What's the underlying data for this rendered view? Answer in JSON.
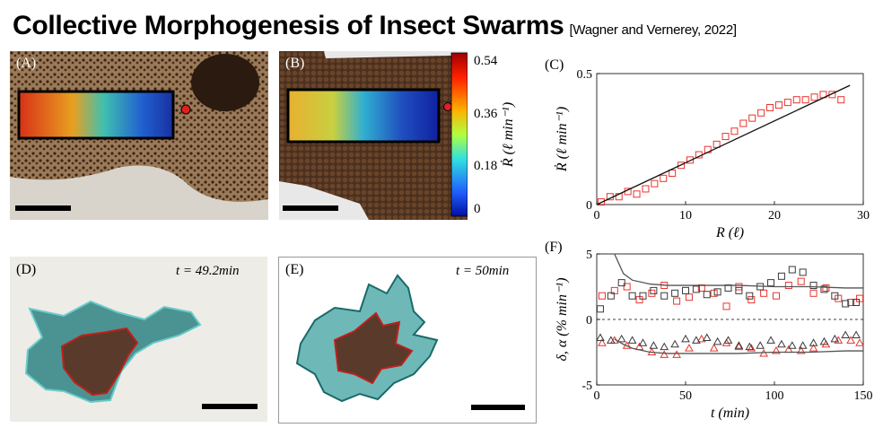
{
  "title": "Collective Morphogenesis of Insect Swarms",
  "citation": "[Wagner and Vernerey, 2022]",
  "panels": {
    "a": {
      "label": "(A)"
    },
    "b": {
      "label": "(B)",
      "colorbar": {
        "ticks": [
          "0.54",
          "0.36",
          "0.18",
          "0"
        ],
        "label": "Ṙ (ℓ min⁻¹)"
      }
    },
    "c": {
      "label": "(C)"
    },
    "d": {
      "label": "(D)",
      "time": "t = 49.2min"
    },
    "e": {
      "label": "(E)",
      "time": "t = 50min"
    },
    "f": {
      "label": "(F)"
    }
  },
  "colors": {
    "red_series": "#e8342e",
    "dark_series": "#3a3a3a",
    "teal_region": "#2a9a9a",
    "core_outline": "#c0201c"
  },
  "chart_data": [
    {
      "type": "scatter",
      "panel": "C",
      "xlabel": "R (ℓ)",
      "ylabel": "Ṙ (ℓ min⁻¹)",
      "xlim": [
        0,
        30
      ],
      "ylim": [
        0,
        0.5
      ],
      "xticks": [
        "0",
        "10",
        "20",
        "30"
      ],
      "yticks": [
        "0",
        "0.5"
      ],
      "series": [
        {
          "marker": "square",
          "color": "#e8342e",
          "x": [
            0.5,
            1.5,
            2.5,
            3.5,
            4.5,
            5.5,
            6.5,
            7.5,
            8.5,
            9.5,
            10.5,
            11.5,
            12.5,
            13.5,
            14.5,
            15.5,
            16.5,
            17.5,
            18.5,
            19.5,
            20.5,
            21.5,
            22.5,
            23.5,
            24.5,
            25.5,
            26.5,
            27.5
          ],
          "y": [
            0.01,
            0.03,
            0.03,
            0.05,
            0.04,
            0.06,
            0.08,
            0.1,
            0.12,
            0.15,
            0.17,
            0.19,
            0.21,
            0.23,
            0.26,
            0.28,
            0.31,
            0.33,
            0.35,
            0.37,
            0.38,
            0.39,
            0.4,
            0.4,
            0.41,
            0.42,
            0.42,
            0.4
          ]
        },
        {
          "type": "line",
          "color": "#111111",
          "x": [
            0,
            28.5
          ],
          "y": [
            0,
            0.455
          ]
        }
      ]
    },
    {
      "type": "scatter",
      "panel": "F",
      "xlabel": "t (min)",
      "ylabel": "δ, α (% min⁻¹)",
      "xlim": [
        0,
        150
      ],
      "ylim": [
        -5,
        5
      ],
      "xticks": [
        "0",
        "50",
        "100",
        "150"
      ],
      "yticks": [
        "-5",
        "0",
        "5"
      ],
      "series": [
        {
          "marker": "square",
          "color": "#e8342e",
          "x": [
            3,
            10,
            17,
            24,
            31,
            38,
            45,
            52,
            59,
            66,
            73,
            80,
            87,
            94,
            101,
            108,
            115,
            122,
            129,
            136,
            143,
            148
          ],
          "y": [
            1.8,
            2.2,
            2.5,
            1.5,
            2.0,
            2.6,
            1.4,
            1.7,
            2.4,
            2.0,
            1.0,
            2.5,
            1.5,
            2.0,
            1.8,
            2.6,
            2.9,
            2.0,
            2.4,
            1.6,
            1.3,
            1.6
          ]
        },
        {
          "marker": "square",
          "color": "#3a3a3a",
          "x": [
            2,
            8,
            14,
            20,
            26,
            32,
            38,
            44,
            50,
            56,
            62,
            68,
            74,
            80,
            86,
            92,
            98,
            104,
            110,
            116,
            122,
            128,
            134,
            140,
            146
          ],
          "y": [
            0.8,
            1.8,
            2.8,
            1.8,
            1.8,
            2.2,
            1.8,
            2.0,
            2.2,
            2.3,
            1.9,
            2.1,
            2.4,
            2.2,
            1.8,
            2.5,
            2.8,
            3.3,
            3.8,
            3.6,
            2.6,
            2.3,
            1.8,
            1.2,
            1.3
          ]
        },
        {
          "marker": "triangle",
          "color": "#e8342e",
          "x": [
            3,
            10,
            17,
            24,
            31,
            38,
            45,
            52,
            59,
            66,
            73,
            80,
            87,
            94,
            101,
            108,
            115,
            122,
            129,
            136,
            143,
            148
          ],
          "y": [
            -1.8,
            -1.6,
            -2.0,
            -2.1,
            -2.5,
            -2.7,
            -2.7,
            -2.2,
            -1.5,
            -2.2,
            -1.8,
            -2.1,
            -2.2,
            -2.6,
            -2.4,
            -2.3,
            -2.4,
            -2.2,
            -1.9,
            -1.6,
            -1.6,
            -1.8
          ]
        },
        {
          "marker": "triangle",
          "color": "#3a3a3a",
          "x": [
            2,
            8,
            14,
            20,
            26,
            32,
            38,
            44,
            50,
            56,
            62,
            68,
            74,
            80,
            86,
            92,
            98,
            104,
            110,
            116,
            122,
            128,
            134,
            140,
            146
          ],
          "y": [
            -1.4,
            -1.6,
            -1.5,
            -1.6,
            -1.8,
            -2.0,
            -2.1,
            -1.9,
            -1.5,
            -1.6,
            -1.4,
            -1.7,
            -1.6,
            -2.0,
            -2.1,
            -2.0,
            -1.6,
            -1.9,
            -2.0,
            -2.0,
            -1.8,
            -1.7,
            -1.5,
            -1.2,
            -1.2
          ]
        },
        {
          "type": "line",
          "color": "#555555",
          "x": [
            10,
            15,
            20,
            30,
            40,
            60,
            80,
            100,
            120,
            140,
            150
          ],
          "y": [
            5.0,
            3.5,
            3.0,
            2.7,
            2.6,
            2.6,
            2.6,
            2.5,
            2.5,
            2.4,
            2.4
          ]
        },
        {
          "type": "line",
          "color": "#555555",
          "x": [
            10,
            15,
            20,
            30,
            40,
            60,
            80,
            100,
            120,
            140,
            150
          ],
          "y": [
            -1.5,
            -1.9,
            -2.2,
            -2.5,
            -2.6,
            -2.6,
            -2.6,
            -2.5,
            -2.5,
            -2.4,
            -2.4
          ]
        },
        {
          "type": "line",
          "color": "#000000",
          "style": "dashed",
          "x": [
            0,
            150
          ],
          "y": [
            0,
            0
          ]
        }
      ]
    }
  ]
}
